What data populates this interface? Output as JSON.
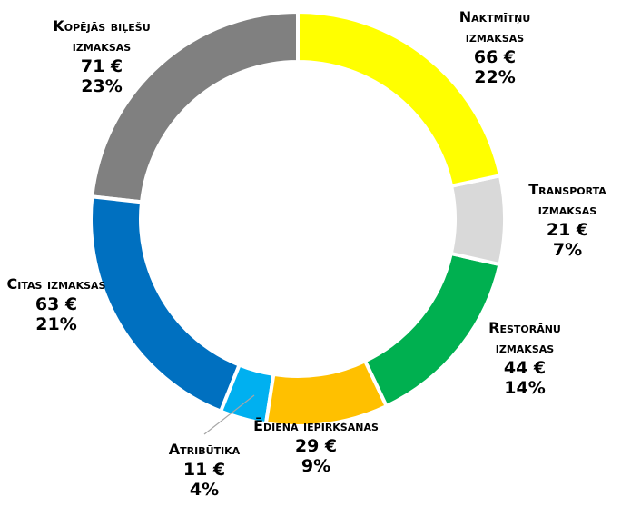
{
  "chart_data": {
    "type": "donut",
    "categories": [
      "Naktmītņu izmaksas",
      "Transporta izmaksas",
      "Restorānu izmaksas",
      "Ēdiena iepirkšanās",
      "Atribūtika",
      "Citas izmaksas",
      "Kopējās biļešu izmaksas"
    ],
    "values": [
      66,
      21,
      44,
      29,
      11,
      63,
      71
    ],
    "value_labels": [
      "66 €",
      "21 €",
      "44 €",
      "29 €",
      "11 €",
      "63 €",
      "71 €"
    ],
    "percent_labels": [
      "22%",
      "7%",
      "14%",
      "9%",
      "4%",
      "21%",
      "23%"
    ],
    "colors": [
      "#ffff00",
      "#d9d9d9",
      "#00b050",
      "#ffc000",
      "#00b0f0",
      "#0070c0",
      "#808080"
    ]
  }
}
